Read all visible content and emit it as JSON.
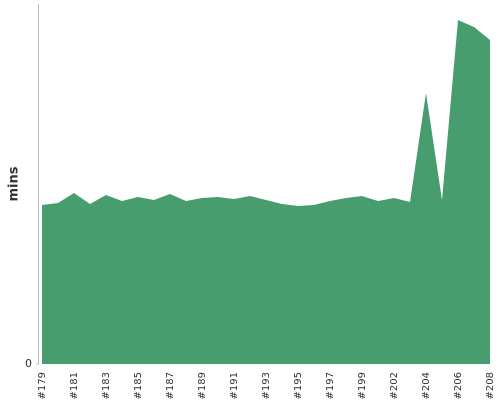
{
  "chart_data": {
    "type": "area",
    "y_label": "mins",
    "color": "#479d6e",
    "categories": [
      "#179",
      null,
      "#181",
      null,
      "#183",
      null,
      "#185",
      null,
      "#187",
      null,
      "#189",
      null,
      "#191",
      null,
      "#193",
      null,
      "#195",
      null,
      "#197",
      null,
      "#199",
      null,
      "#202",
      null,
      "#204",
      null,
      "#206",
      null,
      "#208"
    ],
    "values": [
      15.9,
      16.1,
      17.1,
      16.0,
      16.9,
      16.3,
      16.7,
      16.4,
      17.0,
      16.3,
      16.6,
      16.7,
      16.5,
      16.8,
      16.4,
      16.0,
      15.8,
      15.9,
      16.3,
      16.6,
      16.8,
      16.3,
      16.6,
      16.2,
      27.1,
      16.4,
      34.4,
      33.7,
      32.4
    ],
    "ylim": [
      0,
      36
    ],
    "yticks": [
      0
    ]
  }
}
